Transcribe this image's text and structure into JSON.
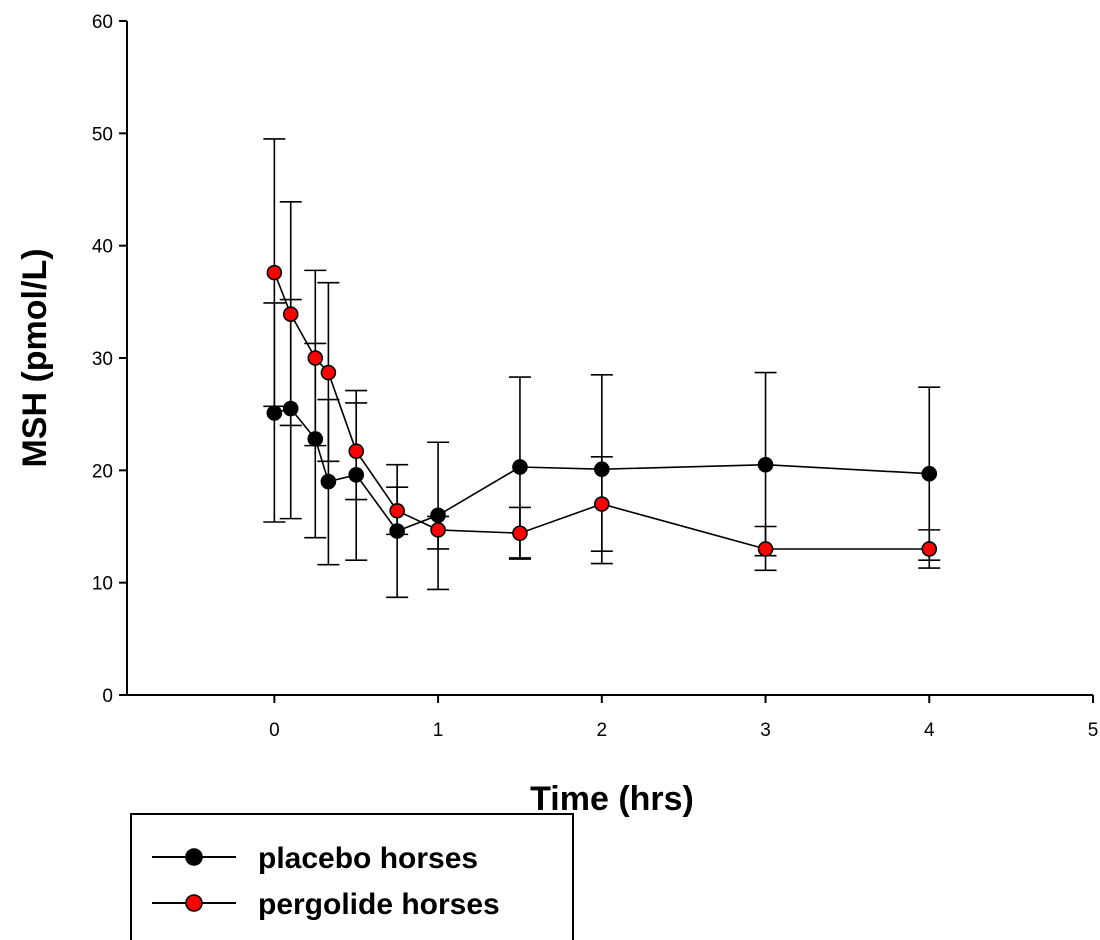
{
  "chart_data": {
    "type": "scatter",
    "title": "",
    "xlabel": "Time (hrs)",
    "ylabel": "MSH (pmol/L)",
    "xlim": [
      -0.9,
      5
    ],
    "ylim": [
      0,
      60
    ],
    "x_ticks": [
      0,
      1,
      2,
      3,
      4,
      5
    ],
    "y_ticks": [
      0,
      10,
      20,
      30,
      40,
      50,
      60
    ],
    "grid": false,
    "legend_position": "bottom-left",
    "series": [
      {
        "name": "placebo horses",
        "color": "#000000",
        "x": [
          0,
          0.1,
          0.25,
          0.33,
          0.5,
          0.75,
          1,
          1.5,
          2,
          3,
          4
        ],
        "y": [
          25.1,
          25.5,
          22.8,
          19.0,
          19.6,
          14.6,
          16.0,
          20.3,
          20.1,
          20.5,
          19.7
        ],
        "err_upper": [
          34.9,
          35.2,
          31.3,
          26.3,
          27.1,
          20.5,
          22.5,
          28.3,
          28.5,
          28.7,
          27.4
        ],
        "err_lower": [
          15.4,
          15.7,
          14.0,
          11.6,
          12.0,
          8.7,
          9.4,
          12.2,
          11.7,
          12.4,
          12.0
        ]
      },
      {
        "name": "pergolide horses",
        "color": "#ff0000",
        "x": [
          0,
          0.1,
          0.25,
          0.33,
          0.5,
          0.75,
          1,
          1.5,
          2,
          3,
          4
        ],
        "y": [
          37.6,
          33.9,
          30.0,
          28.7,
          21.7,
          16.4,
          14.7,
          14.4,
          17.0,
          13.0,
          13.0
        ],
        "err_upper": [
          49.5,
          43.9,
          37.8,
          36.7,
          26.0,
          18.5,
          15.9,
          16.7,
          21.2,
          15.0,
          14.7
        ],
        "err_lower": [
          25.7,
          24.0,
          22.2,
          20.8,
          17.4,
          14.3,
          13.0,
          12.1,
          12.8,
          11.1,
          11.3
        ]
      }
    ]
  }
}
